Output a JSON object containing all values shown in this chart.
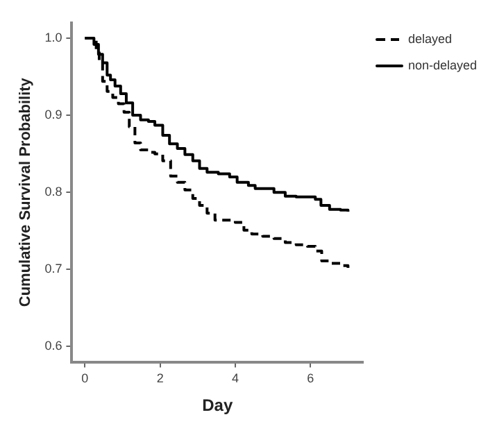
{
  "chart_data": {
    "type": "step",
    "xlabel": "Day",
    "ylabel": "Cumulative Survival Probability",
    "xlim": [
      -0.35,
      7.4
    ],
    "ylim": [
      0.58,
      1.02
    ],
    "xticks": [
      0,
      2,
      4,
      6
    ],
    "yticks": [
      0.6,
      0.7,
      0.8,
      0.9,
      {
        "value": 1,
        "label": "1.0"
      }
    ],
    "grid": false,
    "legend": "top right",
    "marker": "none",
    "series": [
      {
        "name": "delayed",
        "color": "#000000",
        "line_style": "dashed",
        "x": [
          0,
          0.21,
          0.3,
          0.38,
          0.47,
          0.59,
          0.74,
          0.89,
          1.04,
          1.18,
          1.33,
          1.48,
          1.69,
          1.86,
          2.07,
          2.28,
          2.46,
          2.66,
          2.87,
          3.05,
          3.25,
          3.46,
          3.76,
          4.0,
          4.23,
          4.44,
          4.73,
          5.03,
          5.33,
          5.62,
          5.92,
          6.13,
          6.3,
          6.51,
          6.8,
          7.0
        ],
        "values": [
          1.0,
          0.997,
          0.984,
          0.968,
          0.944,
          0.931,
          0.923,
          0.915,
          0.904,
          0.885,
          0.864,
          0.855,
          0.852,
          0.85,
          0.841,
          0.821,
          0.813,
          0.803,
          0.792,
          0.783,
          0.773,
          0.764,
          0.764,
          0.761,
          0.751,
          0.746,
          0.743,
          0.74,
          0.735,
          0.732,
          0.73,
          0.724,
          0.711,
          0.708,
          0.705,
          0.702
        ]
      },
      {
        "name": "non-delayed",
        "color": "#000000",
        "line_style": "solid",
        "x": [
          0,
          0.15,
          0.24,
          0.36,
          0.47,
          0.59,
          0.68,
          0.8,
          0.95,
          1.1,
          1.27,
          1.48,
          1.69,
          1.86,
          2.07,
          2.25,
          2.46,
          2.66,
          2.87,
          3.05,
          3.25,
          3.55,
          3.85,
          4.05,
          4.35,
          4.53,
          4.82,
          5.03,
          5.33,
          5.62,
          5.92,
          6.13,
          6.28,
          6.51,
          6.8,
          7.0
        ],
        "values": [
          1.0,
          1.0,
          0.992,
          0.979,
          0.968,
          0.952,
          0.946,
          0.938,
          0.928,
          0.916,
          0.9,
          0.894,
          0.892,
          0.887,
          0.874,
          0.863,
          0.857,
          0.849,
          0.841,
          0.831,
          0.826,
          0.824,
          0.82,
          0.813,
          0.809,
          0.805,
          0.805,
          0.8,
          0.795,
          0.794,
          0.794,
          0.791,
          0.783,
          0.778,
          0.777,
          0.775
        ]
      }
    ]
  }
}
